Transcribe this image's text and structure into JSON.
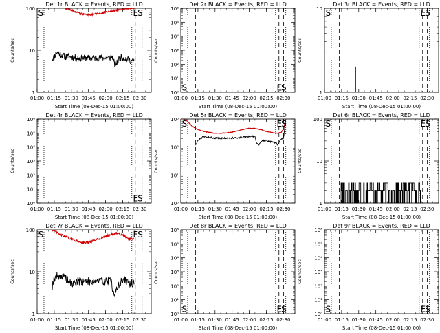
{
  "figure": {
    "grid": false
  },
  "chart_data": [
    {
      "type": "line",
      "title": "Det 1r BLACK = Events, RED = LLD",
      "xlabel": "Start Time (08-Dec-15 01:00:00)",
      "ylabel": "Counts/sec",
      "xlim": [
        0,
        100
      ],
      "xticks": [
        0,
        15,
        30,
        45,
        60,
        75,
        90
      ],
      "xticklabels": [
        "01:00",
        "01:15",
        "01:30",
        "01:45",
        "02:00",
        "02:15",
        "02:30"
      ],
      "yscale": "log",
      "ylim": [
        1,
        100
      ],
      "yticks": [
        1,
        10,
        100
      ],
      "yticklabels": [
        "1",
        "10",
        "100"
      ],
      "dotted_lines": [
        6,
        83,
        92
      ],
      "dashed_lines": [
        13,
        86,
        90
      ],
      "markers": [
        {
          "text": "S",
          "x": 1,
          "y_frac": 0.95
        },
        {
          "text": "E",
          "x": 84,
          "y_frac": 0.95
        },
        {
          "text": "S",
          "x": 88,
          "y_frac": 0.95
        }
      ],
      "series": [
        {
          "color": "#000000",
          "noise": 0.08,
          "seed": 11,
          "x": [
            13,
            15,
            17,
            20,
            25,
            30,
            35,
            40,
            45,
            50,
            55,
            60,
            63,
            66,
            67,
            68,
            70,
            72,
            74,
            76,
            78,
            80,
            83,
            85
          ],
          "y": [
            6,
            7,
            9,
            8,
            7,
            7,
            6.5,
            6.5,
            6.5,
            6.5,
            6.5,
            6.5,
            6.5,
            7,
            5.5,
            4.5,
            5,
            6.5,
            7,
            6.5,
            6.2,
            6,
            5.5,
            6
          ]
        },
        {
          "color": "#d00000",
          "noise": 0.02,
          "seed": 12,
          "x": [
            25,
            30,
            35,
            40,
            45,
            50,
            55,
            60,
            65,
            70,
            75,
            80,
            85
          ],
          "y": [
            100,
            90,
            80,
            72,
            70,
            72,
            75,
            80,
            85,
            90,
            95,
            100,
            100
          ]
        }
      ]
    },
    {
      "type": "line",
      "title": "Det 2r BLACK = Events, RED = LLD",
      "xlabel": "Start Time (08-Dec-15 01:00:00)",
      "ylabel": "Counts/sec",
      "xlim": [
        0,
        100
      ],
      "xticks": [
        0,
        15,
        30,
        45,
        60,
        75,
        90
      ],
      "xticklabels": [
        "01:00",
        "01:15",
        "01:30",
        "01:45",
        "02:00",
        "02:15",
        "02:30"
      ],
      "yscale": "log",
      "ylim": [
        1,
        1000000
      ],
      "yticks": [
        1,
        10,
        100,
        1000,
        10000,
        100000,
        1000000
      ],
      "yticklabels": [
        "10⁰",
        "10¹",
        "10²",
        "10³",
        "10⁴",
        "10⁵",
        "10⁶"
      ],
      "dotted_lines": [
        6,
        83,
        92
      ],
      "dashed_lines": [
        13,
        86,
        90
      ],
      "markers": [
        {
          "text": "S",
          "x": 1,
          "y_frac": 0.06
        },
        {
          "text": "E",
          "x": 84,
          "y_frac": 0.06
        },
        {
          "text": "S",
          "x": 88,
          "y_frac": 0.06
        }
      ],
      "series": []
    },
    {
      "type": "line",
      "title": "Det 3r BLACK = Events, RED = LLD",
      "xlabel": "Start Time (08-Dec-15 01:00:00)",
      "ylabel": "Counts/sec",
      "xlim": [
        0,
        100
      ],
      "xticks": [
        0,
        15,
        30,
        45,
        60,
        75,
        90
      ],
      "xticklabels": [
        "01:00",
        "01:15",
        "01:30",
        "01:45",
        "02:00",
        "02:15",
        "02:30"
      ],
      "yscale": "log",
      "ylim": [
        1,
        10
      ],
      "yticks": [
        1,
        10
      ],
      "yticklabels": [
        "1",
        "10"
      ],
      "dotted_lines": [
        6,
        83,
        92
      ],
      "dashed_lines": [
        13,
        86,
        90
      ],
      "markers": [
        {
          "text": "S",
          "x": 1,
          "y_frac": 0.95
        },
        {
          "text": "E",
          "x": 84,
          "y_frac": 0.95
        },
        {
          "text": "S",
          "x": 88,
          "y_frac": 0.95
        }
      ],
      "series": [
        {
          "color": "#000000",
          "noise": 0,
          "seed": 13,
          "x": [
            27,
            27,
            27.3,
            27.3
          ],
          "y": [
            1,
            2,
            2,
            1
          ]
        }
      ]
    },
    {
      "type": "line",
      "title": "Det 4r BLACK = Events, RED = LLD",
      "xlabel": "Start Time (08-Dec-15 01:00:00)",
      "ylabel": "Counts/sec",
      "xlim": [
        0,
        100
      ],
      "xticks": [
        0,
        15,
        30,
        45,
        60,
        75,
        90
      ],
      "xticklabels": [
        "01:00",
        "01:15",
        "01:30",
        "01:45",
        "02:00",
        "02:15",
        "02:30"
      ],
      "yscale": "log",
      "ylim": [
        1,
        1000000
      ],
      "yticks": [
        1,
        10,
        100,
        1000,
        10000,
        100000,
        1000000
      ],
      "yticklabels": [
        "10⁰",
        "10¹",
        "10²",
        "10³",
        "10⁴",
        "10⁵",
        "10⁶"
      ],
      "dotted_lines": [
        6,
        83,
        92
      ],
      "dashed_lines": [
        13,
        86,
        90
      ],
      "markers": [
        {
          "text": "E",
          "x": 84,
          "y_frac": 0.06
        },
        {
          "text": "S",
          "x": 88,
          "y_frac": 0.06
        }
      ],
      "series": []
    },
    {
      "type": "line",
      "title": "Det 5r BLACK = Events, RED = LLD",
      "xlabel": "Start Time (08-Dec-15 01:00:00)",
      "ylabel": "Counts/sec",
      "xlim": [
        0,
        100
      ],
      "xticks": [
        0,
        15,
        30,
        45,
        60,
        75,
        90
      ],
      "xticklabels": [
        "01:00",
        "01:15",
        "01:30",
        "01:45",
        "02:00",
        "02:15",
        "02:30"
      ],
      "yscale": "log",
      "ylim": [
        1,
        1000
      ],
      "yticks": [
        1,
        10,
        100,
        1000
      ],
      "yticklabels": [
        "10⁰",
        "10¹",
        "10²",
        "10³"
      ],
      "dotted_lines": [
        6,
        83,
        92
      ],
      "dashed_lines": [
        13,
        86,
        90
      ],
      "markers": [
        {
          "text": "S",
          "x": 1,
          "y_frac": 0.95
        },
        {
          "text": "E",
          "x": 84,
          "y_frac": 0.95
        },
        {
          "text": "S",
          "x": 88,
          "y_frac": 0.95
        }
      ],
      "series": [
        {
          "color": "#000000",
          "noise": 0.03,
          "seed": 15,
          "x": [
            13,
            15,
            17,
            20,
            25,
            30,
            35,
            40,
            45,
            50,
            55,
            60,
            63,
            65,
            66,
            68,
            70,
            72,
            75,
            78,
            80,
            83,
            85,
            87,
            90,
            92
          ],
          "y": [
            120,
            170,
            210,
            230,
            220,
            210,
            205,
            205,
            210,
            215,
            225,
            235,
            240,
            240,
            160,
            110,
            150,
            170,
            170,
            160,
            150,
            140,
            120,
            180,
            220,
            1000
          ]
        },
        {
          "color": "#d00000",
          "noise": 0.01,
          "seed": 16,
          "x": [
            2,
            5,
            10,
            15,
            20,
            25,
            30,
            35,
            40,
            45,
            50,
            55,
            60,
            65,
            70,
            75,
            80,
            85,
            88,
            90,
            92
          ],
          "y": [
            1000,
            900,
            550,
            420,
            360,
            330,
            310,
            310,
            320,
            340,
            380,
            430,
            470,
            460,
            420,
            360,
            330,
            310,
            330,
            450,
            1000
          ]
        }
      ]
    },
    {
      "type": "line",
      "title": "Det 6r BLACK = Events, RED = LLD",
      "xlabel": "Start Time (08-Dec-15 01:00:00)",
      "ylabel": "Counts/sec",
      "xlim": [
        0,
        100
      ],
      "xticks": [
        0,
        15,
        30,
        45,
        60,
        75,
        90
      ],
      "xticklabels": [
        "01:00",
        "01:15",
        "01:30",
        "01:45",
        "02:00",
        "02:15",
        "02:30"
      ],
      "yscale": "log",
      "ylim": [
        1,
        100
      ],
      "yticks": [
        1,
        10,
        100
      ],
      "yticklabels": [
        "1",
        "10",
        "100"
      ],
      "dotted_lines": [
        6,
        83,
        92
      ],
      "dashed_lines": [
        13,
        86,
        90
      ],
      "markers": [
        {
          "text": "S",
          "x": 1,
          "y_frac": 0.95
        },
        {
          "text": "E",
          "x": 84,
          "y_frac": 0.95
        },
        {
          "text": "S",
          "x": 88,
          "y_frac": 0.95
        }
      ],
      "series": [
        {
          "color": "#000000",
          "noise": 0,
          "seed": 17,
          "step_levels": [
            1,
            2,
            3
          ],
          "x_range": [
            14,
            85
          ],
          "x_count": 140,
          "x": [],
          "y": []
        }
      ]
    },
    {
      "type": "line",
      "title": "Det 7r BLACK = Events, RED = LLD",
      "xlabel": "Start Time (08-Dec-15 01:00:00)",
      "ylabel": "Counts/sec",
      "xlim": [
        0,
        100
      ],
      "xticks": [
        0,
        15,
        30,
        45,
        60,
        75,
        90
      ],
      "xticklabels": [
        "01:00",
        "01:15",
        "01:30",
        "01:45",
        "02:00",
        "02:15",
        "02:30"
      ],
      "yscale": "log",
      "ylim": [
        1,
        100
      ],
      "yticks": [
        1,
        10,
        100
      ],
      "yticklabels": [
        "1",
        "10",
        "100"
      ],
      "dotted_lines": [
        6,
        83,
        92
      ],
      "dashed_lines": [
        13,
        86,
        90
      ],
      "markers": [
        {
          "text": "S",
          "x": 1,
          "y_frac": 0.95
        },
        {
          "text": "E",
          "x": 84,
          "y_frac": 0.95
        },
        {
          "text": "S",
          "x": 88,
          "y_frac": 0.95
        }
      ],
      "series": [
        {
          "color": "#000000",
          "noise": 0.1,
          "seed": 19,
          "x": [
            13,
            15,
            17,
            20,
            25,
            30,
            35,
            40,
            45,
            50,
            55,
            60,
            63,
            65,
            66,
            68,
            70,
            72,
            74,
            76,
            78,
            80,
            83,
            85
          ],
          "y": [
            4.5,
            7,
            8,
            8,
            7,
            5,
            6,
            6,
            6,
            6,
            6,
            6,
            6,
            6,
            4,
            3,
            4,
            5,
            6,
            6.5,
            6,
            5,
            5.5,
            5
          ]
        },
        {
          "color": "#d00000",
          "noise": 0.025,
          "seed": 20,
          "x": [
            13,
            16,
            20,
            25,
            30,
            35,
            40,
            45,
            50,
            55,
            60,
            65,
            70,
            75,
            80,
            85
          ],
          "y": [
            100,
            90,
            78,
            68,
            60,
            54,
            50,
            50,
            55,
            62,
            70,
            78,
            82,
            75,
            62,
            60
          ]
        }
      ]
    },
    {
      "type": "line",
      "title": "Det 8r BLACK = Events, RED = LLD",
      "xlabel": "Start Time (08-Dec-15 01:00:00)",
      "ylabel": "Counts/sec",
      "xlim": [
        0,
        100
      ],
      "xticks": [
        0,
        15,
        30,
        45,
        60,
        75,
        90
      ],
      "xticklabels": [
        "01:00",
        "01:15",
        "01:30",
        "01:45",
        "02:00",
        "02:15",
        "02:30"
      ],
      "yscale": "log",
      "ylim": [
        1,
        1000000
      ],
      "yticks": [
        1,
        10,
        100,
        1000,
        10000,
        100000,
        1000000
      ],
      "yticklabels": [
        "10⁰",
        "10¹",
        "10²",
        "10³",
        "10⁴",
        "10⁵",
        "10⁶"
      ],
      "dotted_lines": [
        6,
        83,
        92
      ],
      "dashed_lines": [
        13,
        86,
        90
      ],
      "markers": [
        {
          "text": "S",
          "x": 1,
          "y_frac": 0.06
        },
        {
          "text": "E",
          "x": 84,
          "y_frac": 0.06
        },
        {
          "text": "S",
          "x": 88,
          "y_frac": 0.06
        }
      ],
      "series": []
    },
    {
      "type": "line",
      "title": "Det 9r BLACK = Events, RED = LLD",
      "xlabel": "Start Time (08-Dec-15 01:00:00)",
      "ylabel": "Counts/sec",
      "xlim": [
        0,
        100
      ],
      "xticks": [
        0,
        15,
        30,
        45,
        60,
        75,
        90
      ],
      "xticklabels": [
        "01:00",
        "01:15",
        "01:30",
        "01:45",
        "02:00",
        "02:15",
        "02:30"
      ],
      "yscale": "log",
      "ylim": [
        1,
        1000000
      ],
      "yticks": [
        1,
        10,
        100,
        1000,
        10000,
        100000,
        1000000
      ],
      "yticklabels": [
        "10⁰",
        "10¹",
        "10²",
        "10³",
        "10⁴",
        "10⁵",
        "10⁶"
      ],
      "dotted_lines": [
        6,
        83,
        92
      ],
      "dashed_lines": [
        13,
        86,
        90
      ],
      "markers": [
        {
          "text": "S",
          "x": 1,
          "y_frac": 0.06
        },
        {
          "text": "E",
          "x": 84,
          "y_frac": 0.06
        },
        {
          "text": "S",
          "x": 88,
          "y_frac": 0.06
        }
      ],
      "series": []
    }
  ]
}
